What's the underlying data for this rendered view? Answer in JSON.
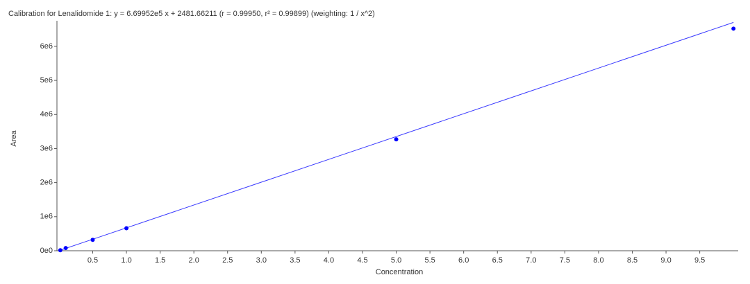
{
  "chart_data": {
    "type": "scatter",
    "title": "Calibration for Lenalidomide 1: y = 6.69952e5 x + 2481.66211 (r = 0.99950, r² = 0.99899)  (weighting: 1 / x^2)",
    "x_label": "Concentration",
    "y_label": "Area",
    "xlim": [
      -0.03,
      10.07
    ],
    "ylim": [
      0,
      6750000
    ],
    "xticks": [
      {
        "value": 0.5,
        "label": "0.5"
      },
      {
        "value": 1,
        "label": "1.0"
      },
      {
        "value": 1.5,
        "label": "1.5"
      },
      {
        "value": 2,
        "label": "2.0"
      },
      {
        "value": 2.5,
        "label": "2.5"
      },
      {
        "value": 3,
        "label": "3.0"
      },
      {
        "value": 3.5,
        "label": "3.5"
      },
      {
        "value": 4,
        "label": "4.0"
      },
      {
        "value": 4.5,
        "label": "4.5"
      },
      {
        "value": 5,
        "label": "5.0"
      },
      {
        "value": 5.5,
        "label": "5.5"
      },
      {
        "value": 6,
        "label": "6.0"
      },
      {
        "value": 6.5,
        "label": "6.5"
      },
      {
        "value": 7,
        "label": "7.0"
      },
      {
        "value": 7.5,
        "label": "7.5"
      },
      {
        "value": 8,
        "label": "8.0"
      },
      {
        "value": 8.5,
        "label": "8.5"
      },
      {
        "value": 9,
        "label": "9.0"
      },
      {
        "value": 9.5,
        "label": "9.5"
      }
    ],
    "yticks": [
      {
        "value": 0,
        "label": "0e0"
      },
      {
        "value": 1000000,
        "label": "1e6"
      },
      {
        "value": 2000000,
        "label": "2e6"
      },
      {
        "value": 3000000,
        "label": "3e6"
      },
      {
        "value": 4000000,
        "label": "4e6"
      },
      {
        "value": 5000000,
        "label": "5e6"
      },
      {
        "value": 6000000,
        "label": "6e6"
      }
    ],
    "points": {
      "color": "#0000ff",
      "x": [
        0.02,
        0.1,
        0.5,
        1,
        5,
        10
      ],
      "values": [
        15000,
        80000,
        320000,
        660000,
        3270000,
        6520000
      ]
    },
    "fit": {
      "color": "#3a3aff",
      "x": [
        0,
        10
      ],
      "values": [
        2482,
        6702002
      ]
    }
  }
}
